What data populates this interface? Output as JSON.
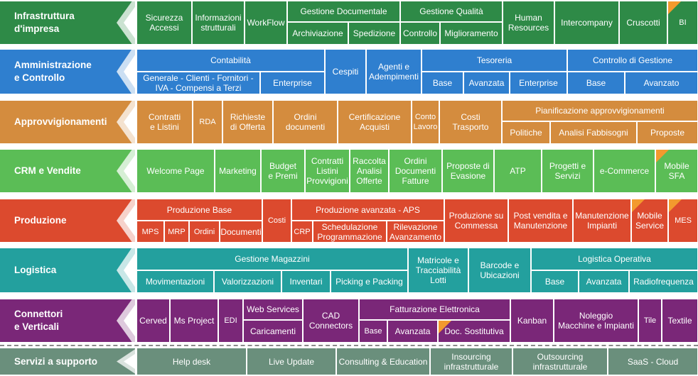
{
  "colors": {
    "infra": "#2e8a47",
    "amm": "#2f7fcf",
    "appr": "#d48c3e",
    "crm": "#5bbd56",
    "prod": "#dc4a2e",
    "log": "#23a09e",
    "conn": "#7a2778",
    "serv": "#6a8f7c",
    "corner": "#f39a2e"
  },
  "rows": [
    {
      "key": "infra",
      "label": "Infrastruttura\nd'impresa",
      "cells": [
        {
          "text": "Sicurezza\nAccessi"
        },
        {
          "text": "Informazioni\nstrutturali"
        },
        {
          "text": "WorkFlow"
        },
        {
          "text": "Gestione Documentale"
        },
        {
          "text": "Archiviazione"
        },
        {
          "text": "Spedizione"
        },
        {
          "text": "Gestione Qualità"
        },
        {
          "text": "Controllo"
        },
        {
          "text": "Miglioramento"
        },
        {
          "text": "Human\nResources"
        },
        {
          "text": "Intercompany"
        },
        {
          "text": "Cruscotti"
        },
        {
          "text": "BI"
        }
      ]
    },
    {
      "key": "amm",
      "label": "Amministrazione\ne Controllo",
      "cells": [
        {
          "text": "Contabilità"
        },
        {
          "text": "Generale - Clienti - Fornitori -\nIVA - Compensi a Terzi"
        },
        {
          "text": "Enterprise"
        },
        {
          "text": "Cespiti"
        },
        {
          "text": "Agenti e\nAdempimenti"
        },
        {
          "text": "Tesoreria"
        },
        {
          "text": "Base"
        },
        {
          "text": "Avanzata"
        },
        {
          "text": "Enterprise"
        },
        {
          "text": "Controllo di Gestione"
        },
        {
          "text": "Base"
        },
        {
          "text": "Avanzato"
        }
      ]
    },
    {
      "key": "appr",
      "label": "Approvvigionamenti",
      "cells": [
        {
          "text": "Contratti\ne Listini"
        },
        {
          "text": "RDA"
        },
        {
          "text": "Richieste\ndi Offerta"
        },
        {
          "text": "Ordini\ndocumenti"
        },
        {
          "text": "Certificazione\nAcquisti"
        },
        {
          "text": "Conto\nLavoro"
        },
        {
          "text": "Costi\nTrasporto"
        },
        {
          "text": "Pianificazione approvvigionamenti"
        },
        {
          "text": "Politiche"
        },
        {
          "text": "Analisi Fabbisogni"
        },
        {
          "text": "Proposte"
        }
      ]
    },
    {
      "key": "crm",
      "label": "CRM e Vendite",
      "cells": [
        {
          "text": "Welcome Page"
        },
        {
          "text": "Marketing"
        },
        {
          "text": "Budget\ne Premi"
        },
        {
          "text": "Contratti\nListini\nProvvigioni"
        },
        {
          "text": "Raccolta\nAnalisi\nOfferte"
        },
        {
          "text": "Ordini\nDocumenti\nFatture"
        },
        {
          "text": "Proposte di\nEvasione"
        },
        {
          "text": "ATP"
        },
        {
          "text": "Progetti e\nServizi"
        },
        {
          "text": "e-Commerce"
        },
        {
          "text": "Mobile\nSFA"
        }
      ]
    },
    {
      "key": "prod",
      "label": "Produzione",
      "cells": [
        {
          "text": "Produzione Base"
        },
        {
          "text": "MPS"
        },
        {
          "text": "MRP"
        },
        {
          "text": "Ordini"
        },
        {
          "text": "Documenti"
        },
        {
          "text": "Costi"
        },
        {
          "text": "Produzione avanzata  -  APS"
        },
        {
          "text": "CRP"
        },
        {
          "text": "Schedulazione\nProgrammazione"
        },
        {
          "text": "Rilevazione\nAvanzamento"
        },
        {
          "text": "Produzione su\nCommessa"
        },
        {
          "text": "Post vendita e\nManutenzione"
        },
        {
          "text": "Manutenzione\nImpianti"
        },
        {
          "text": "Mobile\nService"
        },
        {
          "text": "MES"
        }
      ]
    },
    {
      "key": "log",
      "label": "Logistica",
      "cells": [
        {
          "text": "Gestione Magazzini"
        },
        {
          "text": "Movimentazioni"
        },
        {
          "text": "Valorizzazioni"
        },
        {
          "text": "Inventari"
        },
        {
          "text": "Picking e Packing"
        },
        {
          "text": "Matricole e\nTracciabilità\nLotti"
        },
        {
          "text": "Barcode e\nUbicazioni"
        },
        {
          "text": "Logistica Operativa"
        },
        {
          "text": "Base"
        },
        {
          "text": "Avanzata"
        },
        {
          "text": "Radiofrequenza"
        }
      ]
    },
    {
      "key": "conn",
      "label": "Connettori\ne Verticali",
      "cells": [
        {
          "text": "Cerved"
        },
        {
          "text": "Ms Project"
        },
        {
          "text": "EDI"
        },
        {
          "text": "Web Services"
        },
        {
          "text": "Caricamenti"
        },
        {
          "text": "CAD\nConnectors"
        },
        {
          "text": "Fatturazione Elettronica"
        },
        {
          "text": "Base"
        },
        {
          "text": "Avanzata"
        },
        {
          "text": "Doc. Sostitutiva"
        },
        {
          "text": "Kanban"
        },
        {
          "text": "Noleggio\nMacchine e Impianti"
        },
        {
          "text": "Tile"
        },
        {
          "text": "Textile"
        }
      ]
    },
    {
      "key": "serv",
      "label": "Servizi a supporto",
      "cells": [
        {
          "text": "Help desk"
        },
        {
          "text": "Live Update"
        },
        {
          "text": "Consulting & Education"
        },
        {
          "text": "Insourcing\ninfrastrutturale"
        },
        {
          "text": "Outsourcing\ninfrastrutturale"
        },
        {
          "text": "SaaS - Cloud"
        }
      ]
    }
  ]
}
